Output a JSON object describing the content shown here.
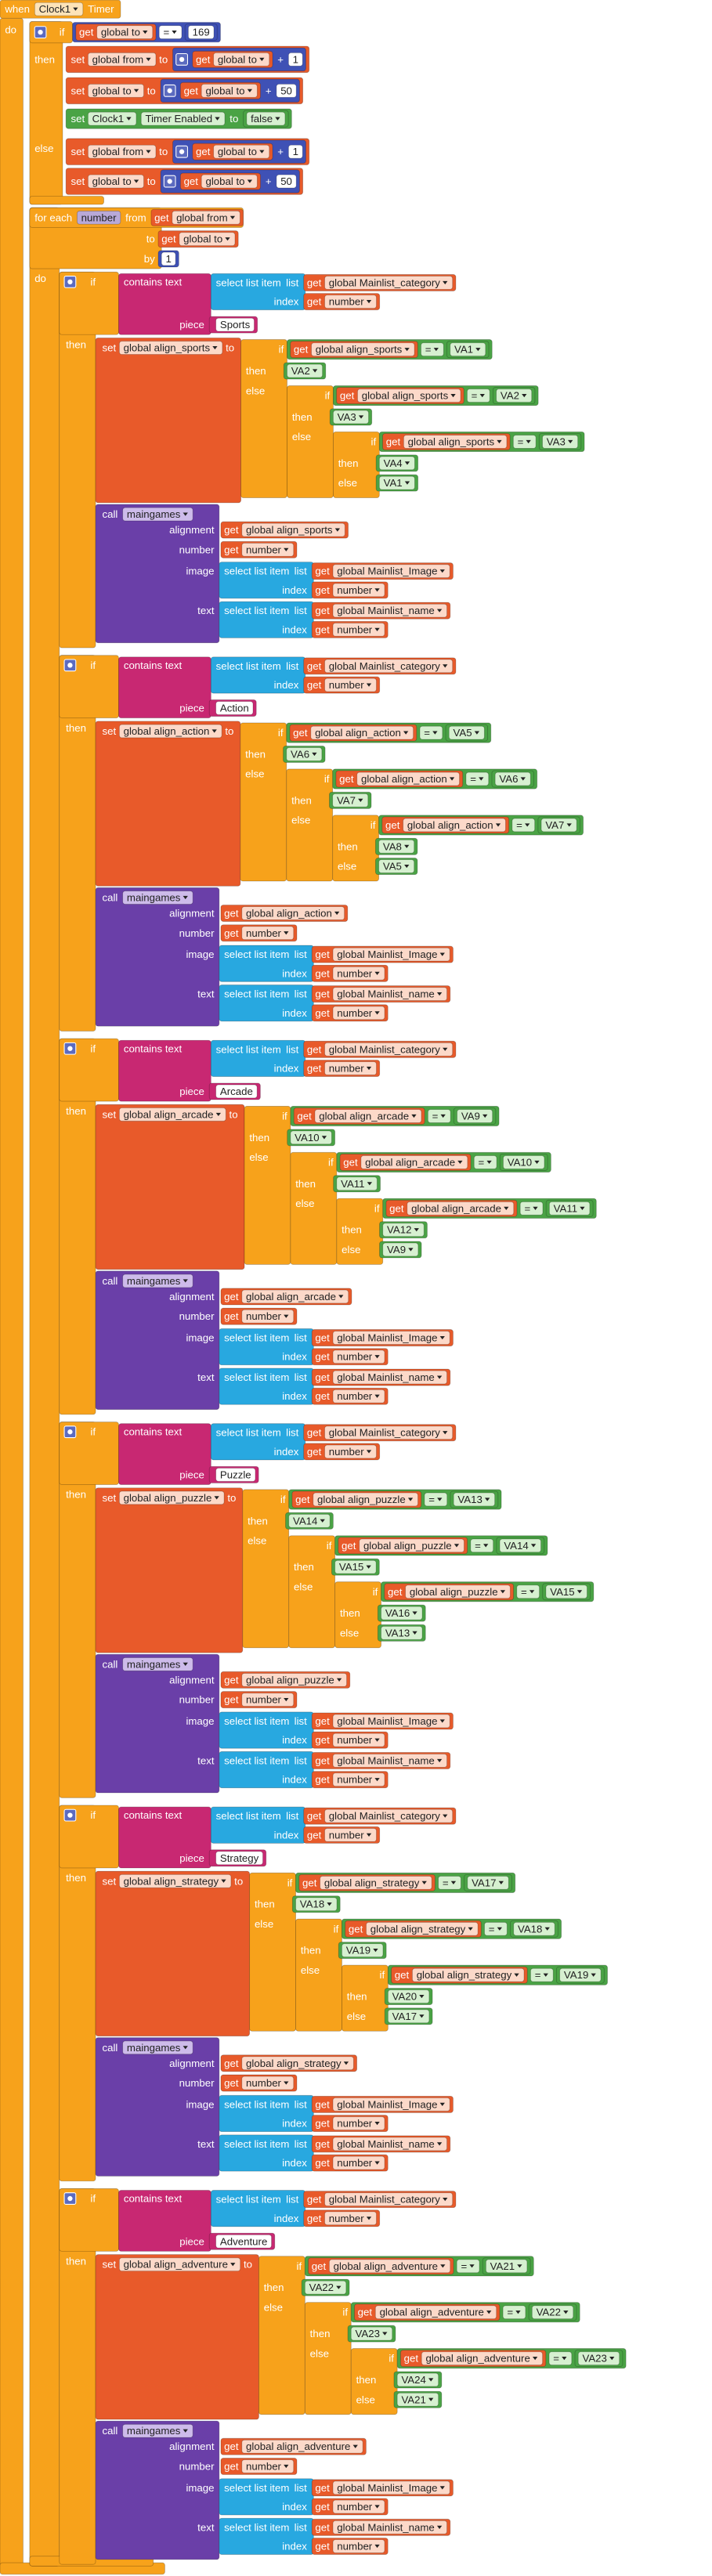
{
  "labels": {
    "when": "when",
    "do": "do",
    "if": "if",
    "then": "then",
    "else": "else",
    "get": "get",
    "set": "set",
    "to": "to",
    "for_each": "for each",
    "from": "from",
    "by": "by",
    "call": "call",
    "contains_text": "contains text",
    "piece": "piece",
    "select_list_item": "select list item",
    "list": "list",
    "index": "index",
    "alignment": "alignment",
    "number": "number",
    "image": "image",
    "text": "text",
    "eq": "=",
    "plus": "+"
  },
  "event": {
    "component": "Clock1",
    "event": "Timer"
  },
  "top_if": {
    "var": "global to",
    "value": 169
  },
  "then": [
    {
      "var": "global from",
      "get": "global to",
      "add": 1
    },
    {
      "var": "global to",
      "get": "global to",
      "add": 50
    },
    {
      "component": "Clock1",
      "property": "Timer Enabled",
      "value": "false"
    }
  ],
  "else": [
    {
      "var": "global from",
      "get": "global to",
      "add": 1
    },
    {
      "var": "global to",
      "get": "global to",
      "add": 50
    }
  ],
  "loop": {
    "var": "number",
    "from": "global from",
    "to": "global to",
    "by": 1
  },
  "sections": [
    {
      "category_list": "global Mainlist_category",
      "index_var": "number",
      "piece": "Sports",
      "var": "global align_sports",
      "values": [
        "VA1",
        "VA2",
        "VA2",
        "VA3",
        "VA3",
        "VA4",
        "VA1"
      ],
      "procedure": "maingames",
      "image_list": "global Mainlist_Image",
      "name_list": "global Mainlist_name"
    },
    {
      "category_list": "global Mainlist_category",
      "index_var": "number",
      "piece": "Action",
      "var": "global align_action",
      "values": [
        "VA5",
        "VA6",
        "VA6",
        "VA7",
        "VA7",
        "VA8",
        "VA5"
      ],
      "procedure": "maingames",
      "image_list": "global Mainlist_Image",
      "name_list": "global Mainlist_name"
    },
    {
      "category_list": "global Mainlist_category",
      "index_var": "number",
      "piece": "Arcade",
      "var": "global align_arcade",
      "values": [
        "VA9",
        "VA10",
        "VA10",
        "VA11",
        "VA11",
        "VA12",
        "VA9"
      ],
      "procedure": "maingames",
      "image_list": "global Mainlist_Image",
      "name_list": "global Mainlist_name"
    },
    {
      "category_list": "global Mainlist_category",
      "index_var": "number",
      "piece": "Puzzle",
      "var": "global align_puzzle",
      "values": [
        "VA13",
        "VA14",
        "VA14",
        "VA15",
        "VA15",
        "VA16",
        "VA13"
      ],
      "procedure": "maingames",
      "image_list": "global Mainlist_Image",
      "name_list": "global Mainlist_name"
    },
    {
      "category_list": "global Mainlist_category",
      "index_var": "number",
      "piece": "Strategy",
      "var": "global align_strategy",
      "values": [
        "VA17",
        "VA18",
        "VA18",
        "VA19",
        "VA19",
        "VA20",
        "VA17"
      ],
      "procedure": "maingames",
      "image_list": "global Mainlist_Image",
      "name_list": "global Mainlist_name"
    },
    {
      "category_list": "global Mainlist_category",
      "index_var": "number",
      "piece": "Adventure",
      "var": "global align_adventure",
      "values": [
        "VA21",
        "VA22",
        "VA22",
        "VA23",
        "VA23",
        "VA24",
        "VA21"
      ],
      "procedure": "maingames",
      "image_list": "global Mainlist_Image",
      "name_list": "global Mainlist_name"
    }
  ]
}
